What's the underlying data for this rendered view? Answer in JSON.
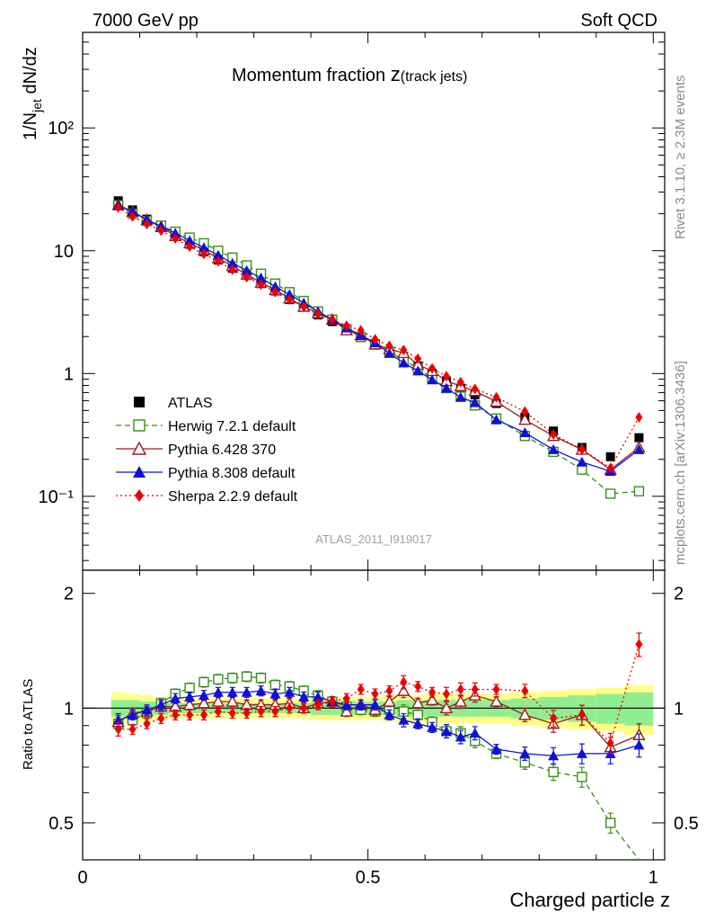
{
  "header": {
    "left": "7000 GeV pp",
    "right": "Soft QCD",
    "title_main": "Momentum fraction ",
    "title_z": "z",
    "title_sub": "(track jets)",
    "side_rivet": "Rivet 3.1.10, ≥ 2.3M events",
    "side_mcplots": "mcplots.cern.ch [arXiv:1306.3436]",
    "watermark": "ATLAS_2011_I919017"
  },
  "chart_data": {
    "type": "line",
    "title": "Momentum fraction z(track jets)",
    "xlabel": "Charged particle z",
    "ylabel_main": "1/N_jet dN/dz",
    "ylabel_ratio": "Ratio to ATLAS",
    "xlim": [
      0,
      1.02
    ],
    "ylim_main": [
      0.025,
      600
    ],
    "ylog_main": true,
    "ylim_ratio": [
      0.4,
      2.3
    ],
    "ylog_ratio": true,
    "legend_position": "lower-left",
    "x_ticks": [
      "0",
      "0.5",
      "1"
    ],
    "y_ticks_main": [
      "10⁻¹",
      "1",
      "10",
      "10²"
    ],
    "y_ticks_ratio": [
      "0.5",
      "1",
      "2"
    ],
    "x": [
      0.0625,
      0.0875,
      0.1125,
      0.1375,
      0.1625,
      0.1875,
      0.2125,
      0.2375,
      0.2625,
      0.2875,
      0.3125,
      0.3375,
      0.3625,
      0.3875,
      0.4125,
      0.4375,
      0.4625,
      0.4875,
      0.5125,
      0.5375,
      0.5625,
      0.5875,
      0.6125,
      0.6375,
      0.6625,
      0.6875,
      0.725,
      0.775,
      0.825,
      0.875,
      0.925,
      0.975
    ],
    "series": [
      {
        "name": "ATLAS",
        "color": "#000000",
        "marker": "square-filled",
        "line": "none",
        "values": [
          25.5,
          21.5,
          18.1,
          15.5,
          13.1,
          11.3,
          9.8,
          8.4,
          7.2,
          6.3,
          5.4,
          4.7,
          4.0,
          3.5,
          3.0,
          2.65,
          2.3,
          2.0,
          1.75,
          1.52,
          1.32,
          1.15,
          1.0,
          0.87,
          0.76,
          0.67,
          0.57,
          0.44,
          0.34,
          0.25,
          0.21,
          0.3
        ]
      },
      {
        "name": "Herwig 7.2.1 default",
        "color": "#3a8f1a",
        "marker": "square-open",
        "line": "dashed",
        "values": [
          23.5,
          20.0,
          17.5,
          16.0,
          14.3,
          12.8,
          11.5,
          10.0,
          8.8,
          7.6,
          6.5,
          5.4,
          4.6,
          3.9,
          3.2,
          2.75,
          2.3,
          1.98,
          1.72,
          1.5,
          1.29,
          1.1,
          0.92,
          0.76,
          0.65,
          0.55,
          0.43,
          0.31,
          0.23,
          0.165,
          0.105,
          0.11
        ]
      },
      {
        "name": "Pythia 6.428 370",
        "color": "#9b1d20",
        "marker": "triangle-open",
        "line": "solid",
        "values": [
          23.5,
          20.8,
          17.8,
          15.6,
          13.2,
          11.5,
          10.1,
          8.7,
          7.5,
          6.4,
          5.5,
          4.8,
          4.1,
          3.5,
          3.1,
          2.75,
          2.25,
          2.05,
          1.73,
          1.58,
          1.47,
          1.18,
          1.05,
          0.87,
          0.79,
          0.72,
          0.59,
          0.42,
          0.31,
          0.24,
          0.165,
          0.25
        ]
      },
      {
        "name": "Pythia 8.308 default",
        "color": "#1010d8",
        "marker": "triangle-filled",
        "line": "solid",
        "values": [
          23.5,
          20.8,
          17.9,
          15.8,
          13.9,
          12.1,
          10.6,
          9.2,
          7.9,
          6.9,
          6.0,
          5.1,
          4.4,
          3.75,
          3.2,
          2.75,
          2.35,
          2.05,
          1.78,
          1.46,
          1.22,
          1.05,
          0.89,
          0.76,
          0.64,
          0.58,
          0.42,
          0.33,
          0.24,
          0.19,
          0.16,
          0.24
        ]
      },
      {
        "name": "Sherpa 2.2.9 default",
        "color": "#ee0000",
        "marker": "diamond-filled",
        "line": "dotted",
        "values": [
          22.5,
          19.0,
          16.5,
          14.6,
          12.6,
          10.8,
          9.4,
          8.2,
          7.0,
          6.1,
          5.3,
          4.6,
          4.0,
          3.5,
          3.05,
          2.75,
          2.45,
          2.25,
          1.9,
          1.68,
          1.55,
          1.32,
          1.1,
          0.95,
          0.85,
          0.75,
          0.64,
          0.49,
          0.32,
          0.24,
          0.17,
          0.44
        ]
      }
    ],
    "ratio_series": [
      {
        "name": "Herwig 7.2.1 default",
        "values": [
          0.91,
          0.93,
          0.97,
          1.03,
          1.09,
          1.13,
          1.17,
          1.19,
          1.2,
          1.21,
          1.2,
          1.15,
          1.14,
          1.11,
          1.08,
          1.04,
          1.01,
          0.99,
          0.98,
          0.99,
          0.98,
          0.96,
          0.92,
          0.87,
          0.86,
          0.82,
          0.76,
          0.72,
          0.68,
          0.66,
          0.5,
          0.37
        ]
      },
      {
        "name": "Pythia 6.428 370",
        "values": [
          0.92,
          0.97,
          0.98,
          1.01,
          1.01,
          1.02,
          1.03,
          1.04,
          1.04,
          1.02,
          1.02,
          1.02,
          1.03,
          1.0,
          1.03,
          1.04,
          0.98,
          1.02,
          0.99,
          1.04,
          1.11,
          1.03,
          1.05,
          1.0,
          1.04,
          1.08,
          1.04,
          0.96,
          0.91,
          0.96,
          0.79,
          0.85
        ]
      },
      {
        "name": "Pythia 8.308 default",
        "values": [
          0.93,
          0.96,
          0.99,
          1.02,
          1.06,
          1.07,
          1.08,
          1.1,
          1.1,
          1.1,
          1.11,
          1.09,
          1.1,
          1.07,
          1.07,
          1.04,
          1.02,
          1.02,
          1.02,
          0.96,
          0.93,
          0.91,
          0.89,
          0.87,
          0.84,
          0.86,
          0.78,
          0.76,
          0.75,
          0.76,
          0.76,
          0.8
        ]
      },
      {
        "name": "Sherpa 2.2.9 default",
        "values": [
          0.88,
          0.88,
          0.91,
          0.94,
          0.96,
          0.96,
          0.96,
          0.98,
          0.97,
          0.97,
          0.98,
          0.98,
          1.0,
          1.0,
          1.02,
          1.04,
          1.06,
          1.12,
          1.09,
          1.11,
          1.17,
          1.14,
          1.1,
          1.09,
          1.12,
          1.12,
          1.12,
          1.11,
          0.94,
          0.96,
          0.81,
          1.47
        ]
      }
    ],
    "ratio_error": [
      0.04,
      0.03,
      0.03,
      0.03,
      0.03,
      0.03,
      0.03,
      0.03,
      0.03,
      0.03,
      0.03,
      0.03,
      0.03,
      0.03,
      0.03,
      0.03,
      0.03,
      0.03,
      0.03,
      0.03,
      0.04,
      0.03,
      0.03,
      0.04,
      0.04,
      0.04,
      0.03,
      0.04,
      0.05,
      0.06,
      0.06,
      0.07
    ],
    "uncertainty_bands": {
      "inner_color": "#90ee90",
      "outer_color": "#ffff88",
      "inner_half": [
        0.05,
        0.05,
        0.04,
        0.04,
        0.03,
        0.03,
        0.03,
        0.03,
        0.03,
        0.03,
        0.03,
        0.03,
        0.03,
        0.03,
        0.04,
        0.04,
        0.04,
        0.04,
        0.04,
        0.04,
        0.05,
        0.05,
        0.05,
        0.05,
        0.05,
        0.05,
        0.05,
        0.06,
        0.07,
        0.08,
        0.09,
        0.1
      ],
      "outer_half": [
        0.1,
        0.09,
        0.08,
        0.07,
        0.06,
        0.06,
        0.06,
        0.06,
        0.06,
        0.06,
        0.06,
        0.06,
        0.06,
        0.06,
        0.07,
        0.07,
        0.07,
        0.07,
        0.07,
        0.08,
        0.08,
        0.08,
        0.09,
        0.09,
        0.09,
        0.09,
        0.09,
        0.1,
        0.11,
        0.12,
        0.13,
        0.15
      ]
    }
  }
}
